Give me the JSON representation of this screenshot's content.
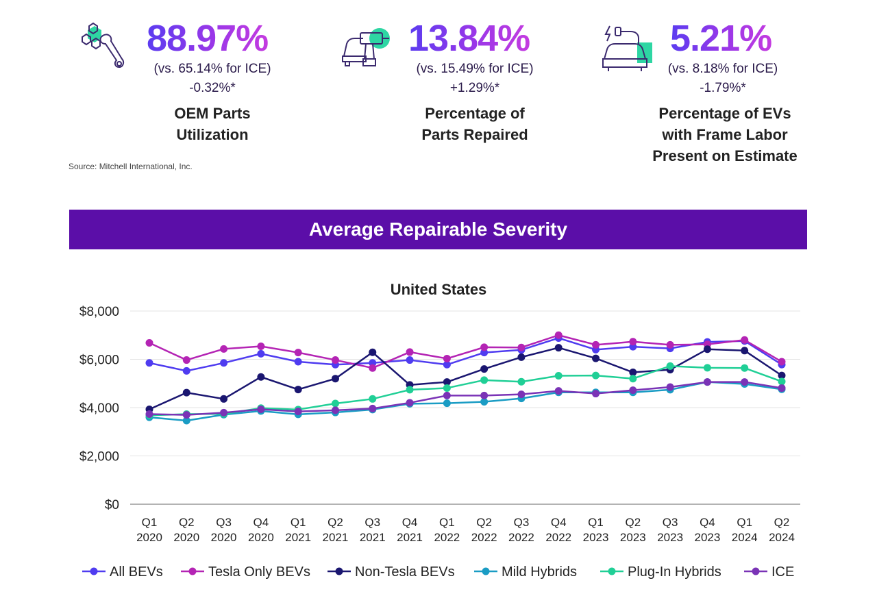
{
  "stats": [
    {
      "value": "88.97%",
      "comparison": "(vs. 65.14% for ICE)",
      "change": "-0.32%*",
      "label": "OEM Parts\nUtilization",
      "icon": "wrench-bolts-icon"
    },
    {
      "value": "13.84%",
      "comparison": "(vs. 15.49% for ICE)",
      "change": "+1.29%*",
      "label": "Percentage of\nParts Repaired",
      "icon": "car-drill-icon"
    },
    {
      "value": "5.21%",
      "comparison": "(vs. 8.18% for ICE)",
      "change": "-1.79%*",
      "label": "Percentage of EVs\nwith Frame Labor\nPresent on Estimate",
      "icon": "ev-charging-car-icon"
    }
  ],
  "source": "Source: Mitchell International, Inc.",
  "banner": "Average Repairable Severity",
  "colors": {
    "banner": "#5b0ea8",
    "accent_teal": "#2ed6a3",
    "icon_purple": "#3b2a6e"
  },
  "chart_data": {
    "type": "line",
    "title": "United States",
    "xlabel": "",
    "ylabel": "",
    "ylim": [
      0,
      8000
    ],
    "yticks": [
      0,
      2000,
      4000,
      6000,
      8000
    ],
    "ytick_labels": [
      "$0",
      "$2,000",
      "$4,000",
      "$6,000",
      "$8,000"
    ],
    "grid": true,
    "legend_position": "bottom",
    "categories": [
      [
        "Q1",
        "2020"
      ],
      [
        "Q2",
        "2020"
      ],
      [
        "Q3",
        "2020"
      ],
      [
        "Q4",
        "2020"
      ],
      [
        "Q1",
        "2021"
      ],
      [
        "Q2",
        "2021"
      ],
      [
        "Q3",
        "2021"
      ],
      [
        "Q4",
        "2021"
      ],
      [
        "Q1",
        "2022"
      ],
      [
        "Q2",
        "2022"
      ],
      [
        "Q3",
        "2022"
      ],
      [
        "Q4",
        "2022"
      ],
      [
        "Q1",
        "2023"
      ],
      [
        "Q2",
        "2023"
      ],
      [
        "Q3",
        "2023"
      ],
      [
        "Q4",
        "2023"
      ],
      [
        "Q1",
        "2024"
      ],
      [
        "Q2",
        "2024"
      ]
    ],
    "series": [
      {
        "name": "All BEVs",
        "color": "#4f3cf0",
        "values": [
          5850,
          5520,
          5850,
          6230,
          5900,
          5780,
          5850,
          5970,
          5780,
          6280,
          6390,
          6880,
          6400,
          6520,
          6450,
          6720,
          6760,
          5780
        ]
      },
      {
        "name": "Tesla Only BEVs",
        "color": "#b424b4",
        "values": [
          6680,
          5970,
          6430,
          6540,
          6280,
          5970,
          5640,
          6300,
          6030,
          6500,
          6490,
          7000,
          6600,
          6730,
          6600,
          6620,
          6800,
          5900
        ]
      },
      {
        "name": "Non-Tesla BEVs",
        "color": "#1a1670",
        "values": [
          3930,
          4620,
          4360,
          5270,
          4750,
          5200,
          6290,
          4940,
          5060,
          5600,
          6090,
          6480,
          6040,
          5460,
          5570,
          6420,
          6360,
          5330
        ]
      },
      {
        "name": "Mild Hybrids",
        "color": "#1a9cc4",
        "values": [
          3600,
          3460,
          3710,
          3860,
          3720,
          3800,
          3920,
          4160,
          4180,
          4240,
          4380,
          4630,
          4630,
          4630,
          4740,
          5060,
          4980,
          4760
        ]
      },
      {
        "name": "Plug-In Hybrids",
        "color": "#20cf96",
        "values": [
          3680,
          3730,
          3740,
          3980,
          3920,
          4170,
          4360,
          4740,
          4810,
          5140,
          5070,
          5320,
          5330,
          5200,
          5720,
          5650,
          5640,
          5080
        ]
      },
      {
        "name": "ICE",
        "color": "#7a33b6",
        "values": [
          3730,
          3700,
          3790,
          3930,
          3840,
          3890,
          3960,
          4200,
          4500,
          4500,
          4550,
          4690,
          4580,
          4720,
          4850,
          5060,
          5060,
          4810
        ]
      }
    ]
  }
}
